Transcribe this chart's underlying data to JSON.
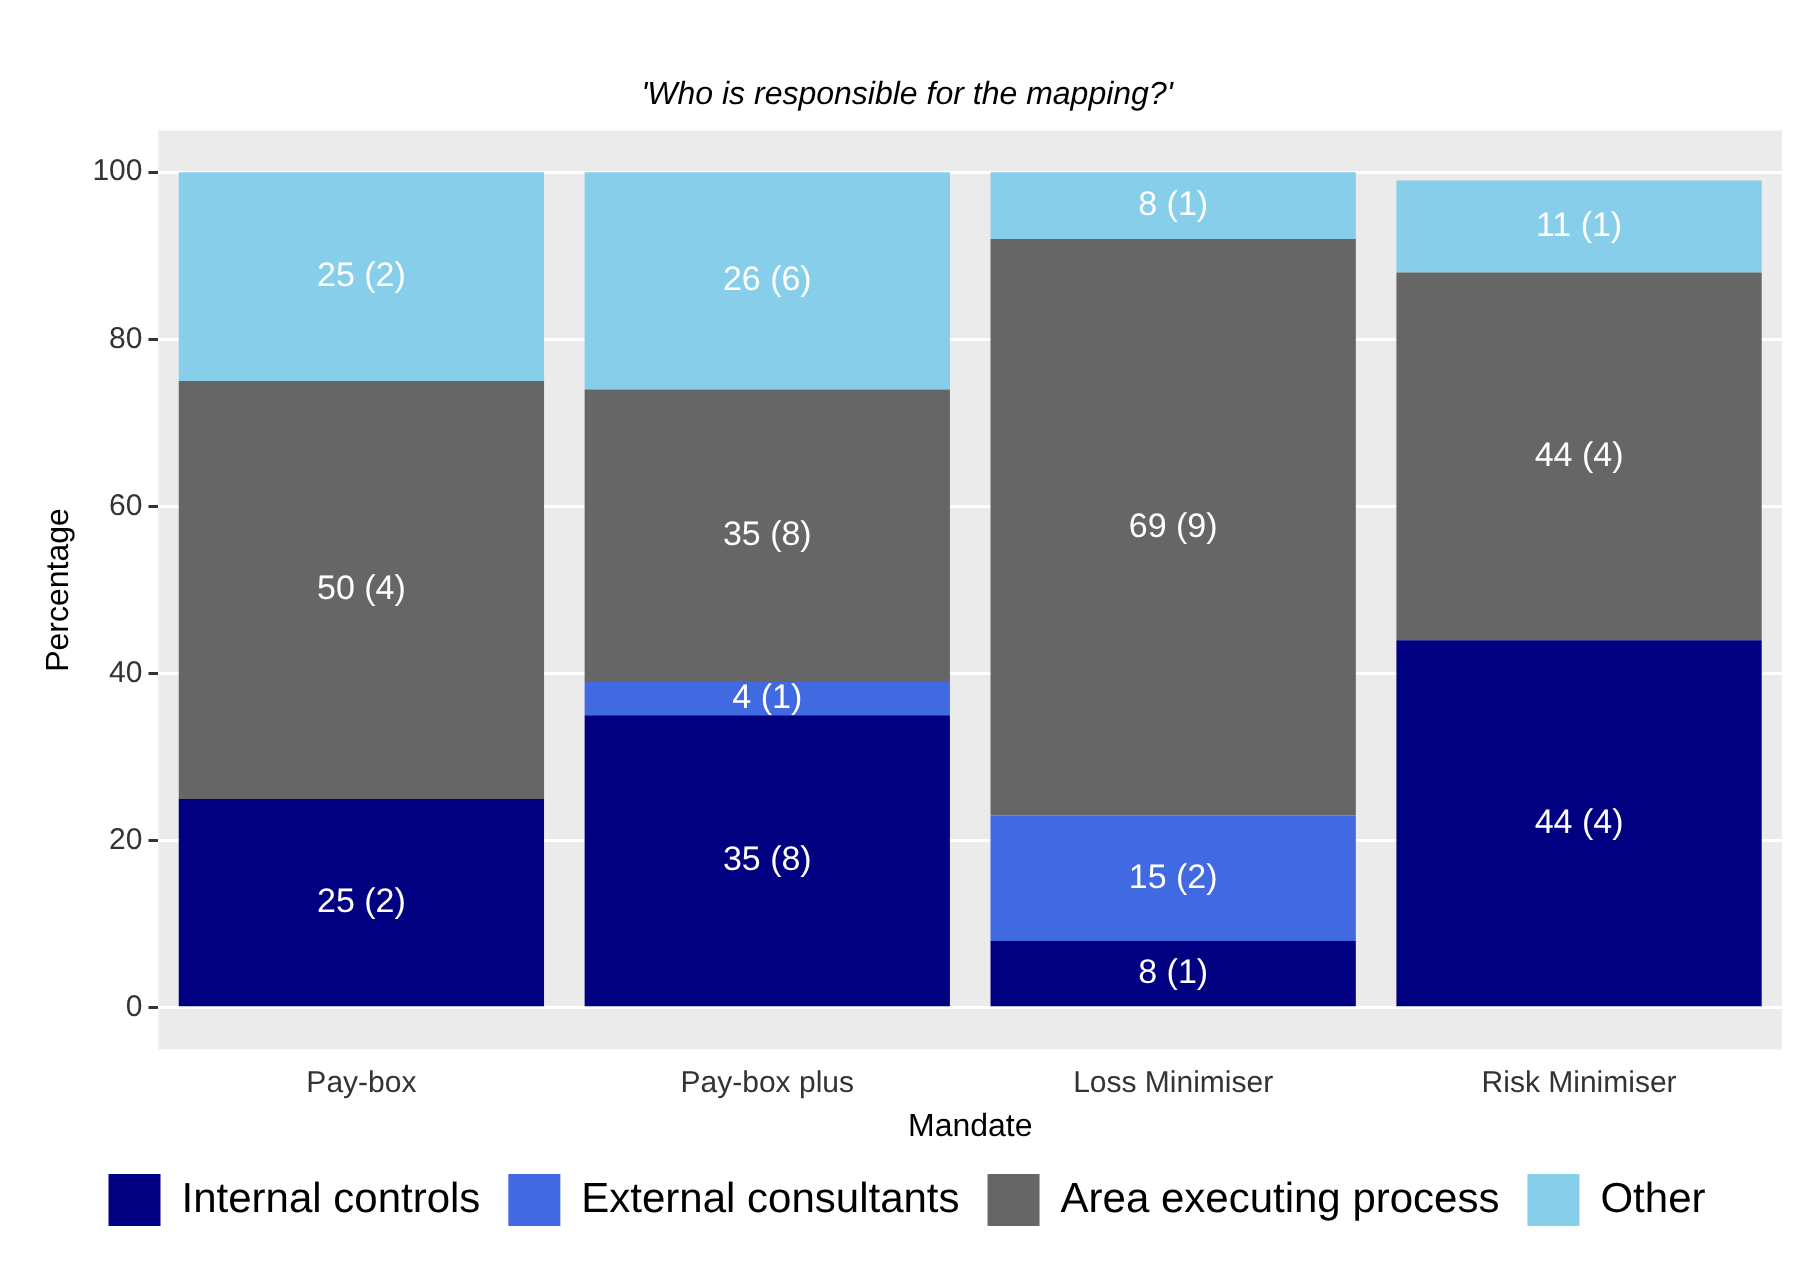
{
  "chart_data": {
    "type": "bar",
    "title": "'Who is responsible for the mapping?'",
    "xlabel": "Mandate",
    "ylabel": "Percentage",
    "categories": [
      "Pay-box",
      "Pay-box plus",
      "Loss Minimiser",
      "Risk Minimiser"
    ],
    "stacked": true,
    "series": [
      {
        "name": "Internal controls",
        "color": "#000080",
        "values": [
          25,
          35,
          8,
          44
        ],
        "value_labels": [
          "25 (2)",
          "35 (8)",
          "8 (1)",
          "44 (4)"
        ]
      },
      {
        "name": "External consultants",
        "color": "#4169e1",
        "values": [
          null,
          4,
          15,
          null
        ],
        "value_labels": [
          null,
          "4 (1)",
          "15 (2)",
          null
        ]
      },
      {
        "name": "Area executing process",
        "color": "#666666",
        "values": [
          50,
          35,
          69,
          44
        ],
        "value_labels": [
          "50 (4)",
          "35 (8)",
          "69 (9)",
          "44 (4)"
        ]
      },
      {
        "name": "Other",
        "color": "#87ceeb",
        "values": [
          25,
          26,
          8,
          11
        ],
        "value_labels": [
          "25 (2)",
          "26 (6)",
          "8 (1)",
          "11 (1)"
        ]
      }
    ],
    "ylim": [
      -5,
      105
    ],
    "yticks": [
      0,
      20,
      40,
      60,
      80,
      100
    ],
    "grid": "y",
    "legend": "bottom"
  }
}
